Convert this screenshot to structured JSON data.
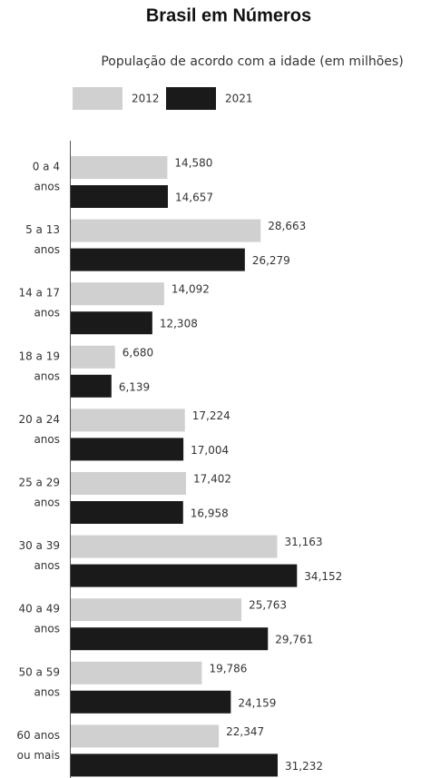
{
  "chart_data": {
    "type": "bar",
    "orientation": "horizontal",
    "title": "Brasil em Números",
    "subtitle": "População de acordo com a idade (em milhões)",
    "categories": [
      [
        "0 a 4",
        "anos"
      ],
      [
        "5 a 13",
        "anos"
      ],
      [
        "14 a 17",
        "anos"
      ],
      [
        "18 a 19",
        "anos"
      ],
      [
        "20 a 24",
        "anos"
      ],
      [
        "25 a 29",
        "anos"
      ],
      [
        "30 a 39",
        "anos"
      ],
      [
        "40 a 49",
        "anos"
      ],
      [
        "50 a 59",
        "anos"
      ],
      [
        "60 anos",
        "ou mais"
      ]
    ],
    "series": [
      {
        "name": "2012",
        "color": "#d0d0d0",
        "values": [
          14.58,
          28.663,
          14.092,
          6.68,
          17.224,
          17.402,
          31.163,
          25.763,
          19.786,
          22.347
        ],
        "value_labels": [
          "14,580",
          "28,663",
          "14,092",
          "6,680",
          "17,224",
          "17,402",
          "31,163",
          "25,763",
          "19,786",
          "22,347"
        ]
      },
      {
        "name": "2021",
        "color": "#1a1a1a",
        "values": [
          14.657,
          26.279,
          12.308,
          6.139,
          17.004,
          16.958,
          34.152,
          29.761,
          24.159,
          31.232
        ],
        "value_labels": [
          "14,657",
          "26,279",
          "12,308",
          "6,139",
          "17,004",
          "16,958",
          "34,152",
          "29,761",
          "24,159",
          "31,232"
        ]
      }
    ]
  }
}
